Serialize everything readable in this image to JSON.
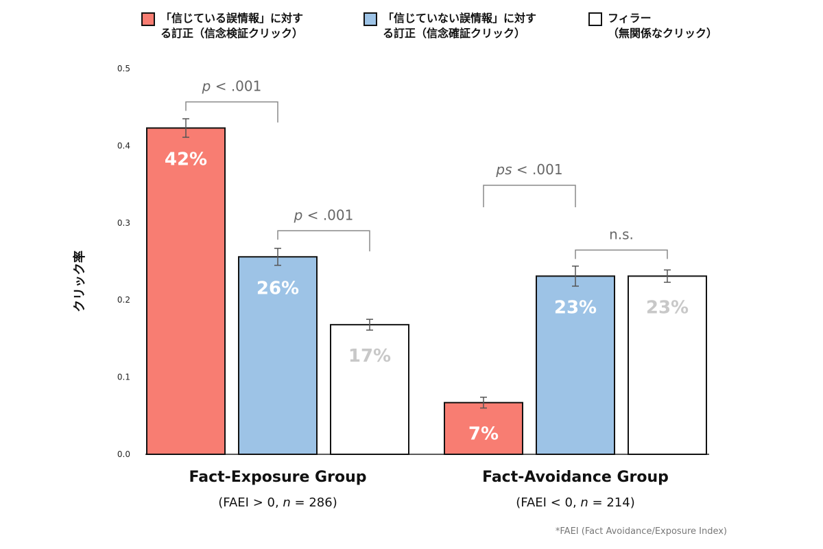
{
  "legend": [
    {
      "label": "「信じている誤情報」に対す\nる訂正（信念検証クリック）",
      "color": "#F87D72"
    },
    {
      "label": "「信じていない誤情報」に対す\nる訂正（信念確証クリック）",
      "color": "#9DC3E6"
    },
    {
      "label": "フィラー\n（無関係なクリック）",
      "color": "#FFFFFF"
    }
  ],
  "chart_data": {
    "type": "bar",
    "ylabel": "クリック率",
    "ylim": [
      0,
      0.5
    ],
    "yticks": [
      "0.0",
      "0.1",
      "0.2",
      "0.3",
      "0.4",
      "0.5"
    ],
    "groups": [
      {
        "title": "Fact-Exposure Group",
        "subtitle_prefix": "(FAEI > 0, ",
        "subtitle_n": "n",
        "subtitle_suffix": " = 286)",
        "bars": [
          {
            "value": 0.423,
            "error": 0.012,
            "label": "42%"
          },
          {
            "value": 0.256,
            "error": 0.011,
            "label": "26%"
          },
          {
            "value": 0.168,
            "error": 0.007,
            "label": "17%"
          }
        ]
      },
      {
        "title": "Fact-Avoidance Group",
        "subtitle_prefix": "(FAEI < 0, ",
        "subtitle_n": "n",
        "subtitle_suffix": " = 214)",
        "bars": [
          {
            "value": 0.067,
            "error": 0.007,
            "label": "7%"
          },
          {
            "value": 0.231,
            "error": 0.013,
            "label": "23%"
          },
          {
            "value": 0.231,
            "error": 0.008,
            "label": "23%"
          }
        ]
      }
    ],
    "annotations": [
      {
        "italic": "p",
        "rest": " < .001",
        "group": 0,
        "from": 0,
        "to": 1
      },
      {
        "italic": "p",
        "rest": " < .001",
        "group": 0,
        "from": 1,
        "to": 2
      },
      {
        "italic": "ps",
        "rest": " < .001",
        "group": 1,
        "from": 0,
        "to": 1
      },
      {
        "italic": "",
        "rest": "n.s.",
        "group": 1,
        "from": 1,
        "to": 2
      }
    ],
    "label_colors": [
      "#FFFFFF",
      "#FFFFFF",
      "#C8C8C8"
    ]
  },
  "footnote": "*FAEI (Fact Avoidance/Exposure Index)"
}
